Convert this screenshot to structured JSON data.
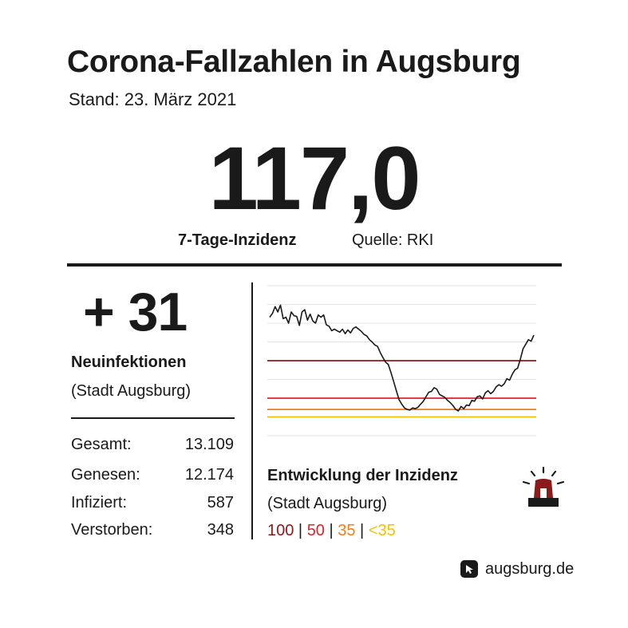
{
  "header": {
    "title": "Corona-Fallzahlen in Augsburg",
    "date": "Stand: 23. März 2021"
  },
  "incidence": {
    "value": "117,0",
    "label": "7-Tage-Inzidenz",
    "source": "Quelle: RKI"
  },
  "new_infections": {
    "value": "+ 31",
    "label": "Neuinfektionen",
    "sublabel": "(Stadt Augsburg)"
  },
  "stats": [
    {
      "label": "Gesamt:",
      "value": "13.109"
    },
    {
      "label": "Genesen:",
      "value": "12.174"
    },
    {
      "label": "Infiziert:",
      "value": "587"
    },
    {
      "label": "Verstorben:",
      "value": "348"
    }
  ],
  "chart_data": {
    "type": "line",
    "title": "Entwicklung der Inzidenz",
    "subtitle": "(Stadt Augsburg)",
    "ylim": [
      0,
      200
    ],
    "grid": true,
    "values": [
      158,
      163,
      172,
      165,
      174,
      156,
      158,
      150,
      165,
      160,
      159,
      147,
      165,
      168,
      154,
      162,
      153,
      150,
      161,
      158,
      161,
      148,
      146,
      140,
      142,
      140,
      138,
      142,
      136,
      141,
      137,
      143,
      145,
      142,
      139,
      135,
      133,
      128,
      125,
      121,
      119,
      111,
      104,
      98,
      95,
      84,
      72,
      60,
      48,
      42,
      37,
      35,
      34,
      37,
      36,
      38,
      42,
      46,
      52,
      58,
      59,
      64,
      62,
      55,
      53,
      51,
      47,
      44,
      40,
      35,
      33,
      39,
      36,
      41,
      40,
      47,
      46,
      52,
      53,
      49,
      57,
      60,
      56,
      59,
      65,
      68,
      66,
      69,
      76,
      74,
      82,
      88,
      90,
      102,
      116,
      122,
      128,
      126,
      134
    ],
    "thresholds": [
      {
        "label": "100",
        "value": 100,
        "color": "#8b1a1a"
      },
      {
        "label": "50",
        "value": 50,
        "color": "#d7262b"
      },
      {
        "label": "35",
        "value": 35,
        "color": "#ef7d1a"
      },
      {
        "label": "<35",
        "value": 25,
        "color": "#f2c200"
      }
    ]
  },
  "footer": {
    "site": "augsburg.de",
    "icon": "augsburg-logo-icon"
  },
  "icons": {
    "alert": "siren-icon"
  }
}
